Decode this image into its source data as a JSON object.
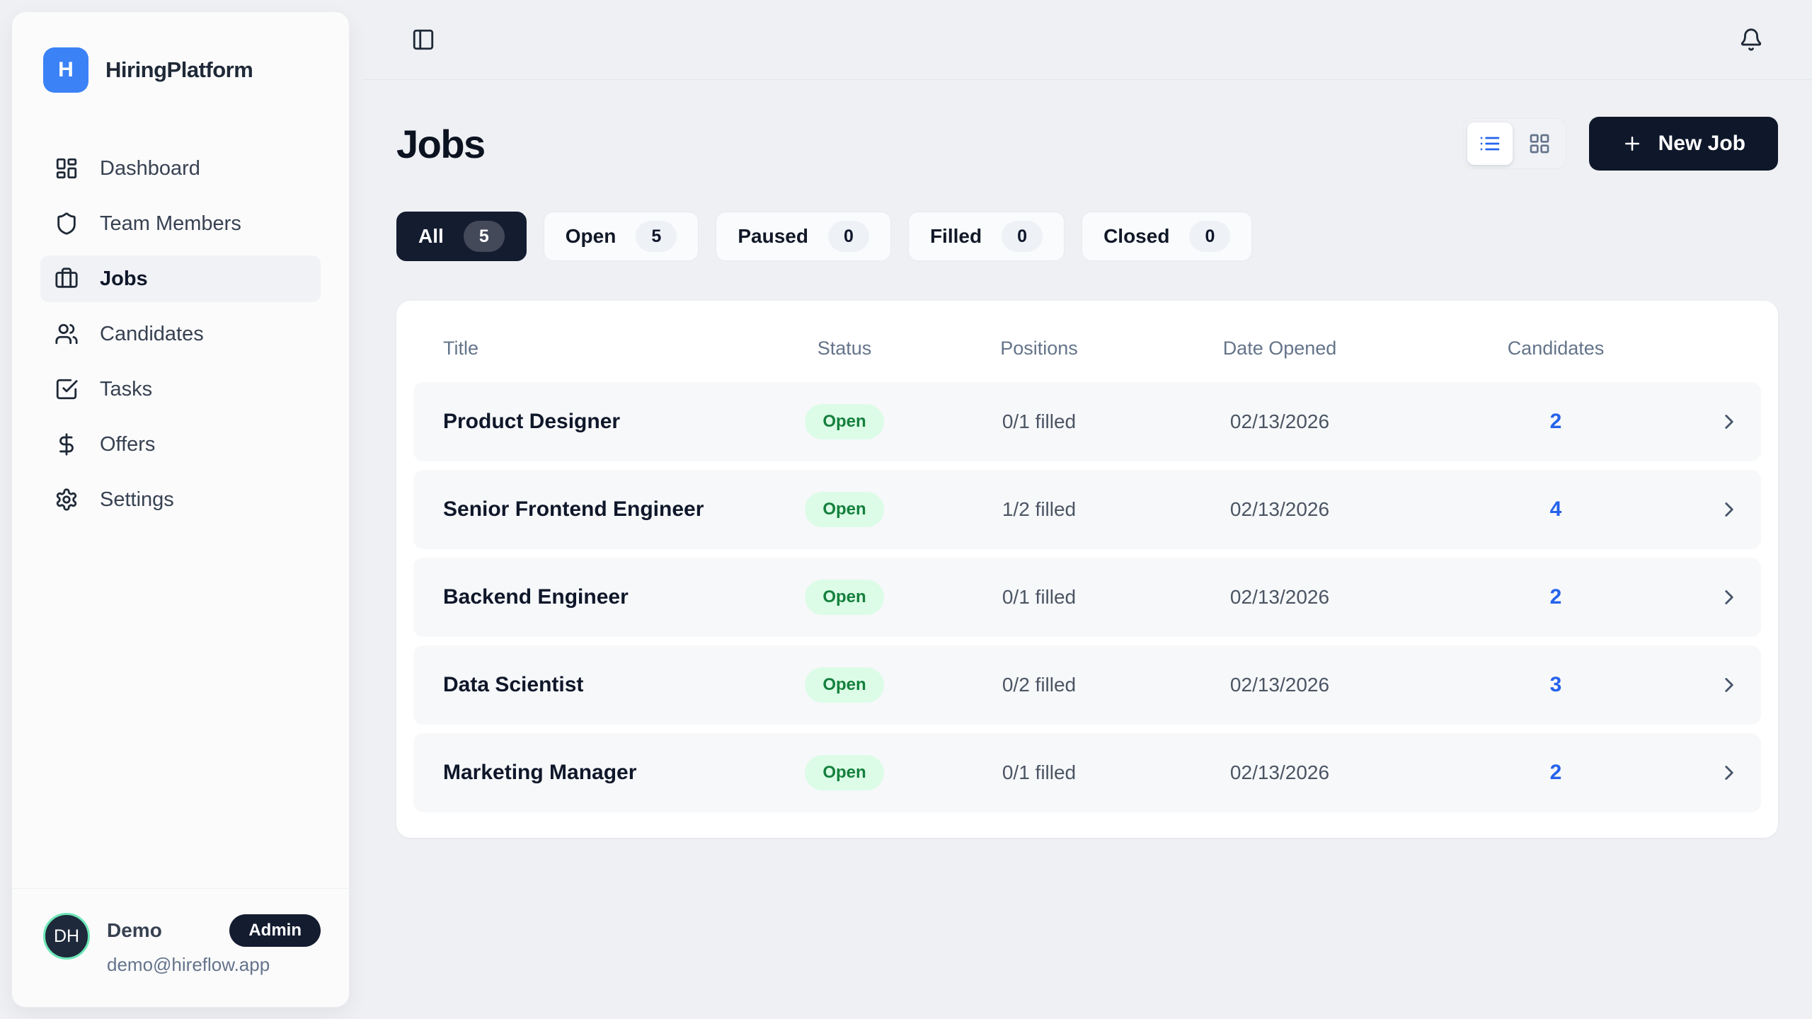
{
  "brand": {
    "name": "HiringPlatform",
    "logo_letter": "H"
  },
  "sidebar": {
    "items": [
      {
        "label": "Dashboard",
        "icon": "dashboard"
      },
      {
        "label": "Team Members",
        "icon": "shield"
      },
      {
        "label": "Jobs",
        "icon": "briefcase",
        "active": true
      },
      {
        "label": "Candidates",
        "icon": "users"
      },
      {
        "label": "Tasks",
        "icon": "check-square"
      },
      {
        "label": "Offers",
        "icon": "dollar"
      },
      {
        "label": "Settings",
        "icon": "gear"
      }
    ],
    "user": {
      "initials": "DH",
      "name": "Demo",
      "role": "Admin",
      "email": "demo@hireflow.app"
    }
  },
  "topbar": {
    "icons": [
      "panel-left",
      "bell"
    ]
  },
  "page": {
    "title": "Jobs",
    "new_job_label": "New Job",
    "active_view": "list",
    "filters": [
      {
        "label": "All",
        "count": "5",
        "active": true
      },
      {
        "label": "Open",
        "count": "5"
      },
      {
        "label": "Paused",
        "count": "0"
      },
      {
        "label": "Filled",
        "count": "0"
      },
      {
        "label": "Closed",
        "count": "0"
      }
    ]
  },
  "table": {
    "headers": [
      "Title",
      "Status",
      "Positions",
      "Date Opened",
      "Candidates"
    ],
    "rows": [
      {
        "title": "Product Designer",
        "status": "Open",
        "positions": "0/1 filled",
        "date_opened": "02/13/2026",
        "candidates": "2"
      },
      {
        "title": "Senior Frontend Engineer",
        "status": "Open",
        "positions": "1/2 filled",
        "date_opened": "02/13/2026",
        "candidates": "4"
      },
      {
        "title": "Backend Engineer",
        "status": "Open",
        "positions": "0/1 filled",
        "date_opened": "02/13/2026",
        "candidates": "2"
      },
      {
        "title": "Data Scientist",
        "status": "Open",
        "positions": "0/2 filled",
        "date_opened": "02/13/2026",
        "candidates": "3"
      },
      {
        "title": "Marketing Manager",
        "status": "Open",
        "positions": "0/1 filled",
        "date_opened": "02/13/2026",
        "candidates": "2"
      }
    ]
  },
  "colors": {
    "page_bg": "#eef0f3",
    "primary_dark": "#0f172a",
    "logo_blue": "#3b82f6",
    "accent_blue": "#2563eb",
    "status_open_bg": "#dcfce7",
    "status_open_text": "#15803d",
    "avatar_ring": "#6ee7b7",
    "muted_text": "#64748b"
  }
}
